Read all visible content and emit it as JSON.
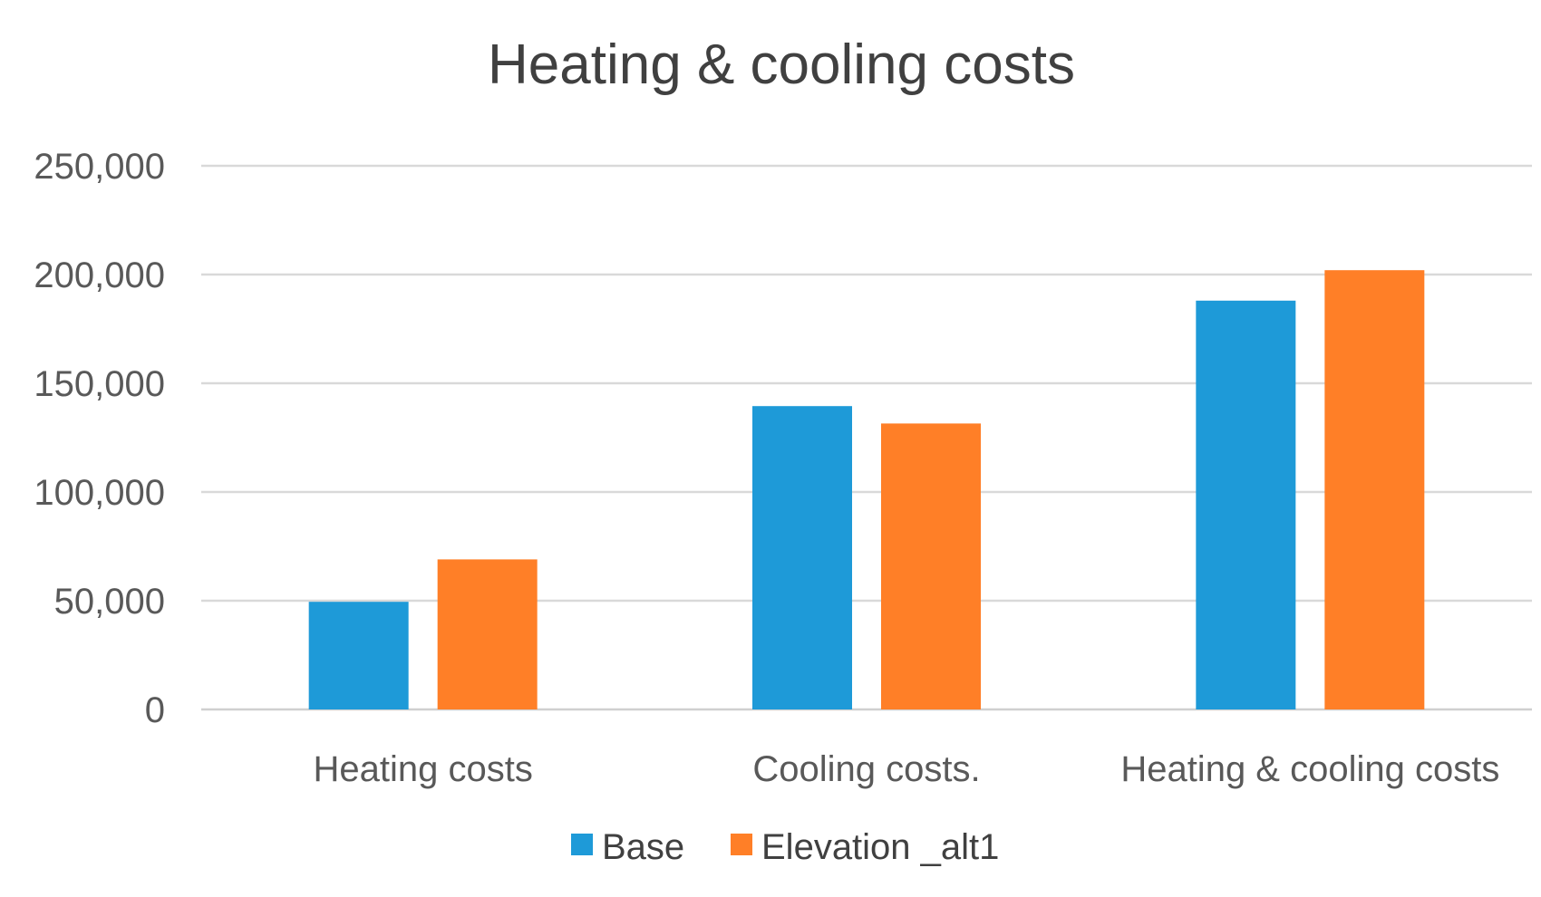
{
  "chart_data": {
    "type": "bar",
    "title": "Heating & cooling costs",
    "xlabel": "",
    "ylabel": "",
    "categories": [
      "Heating costs",
      "Cooling costs.",
      "Heating & cooling costs"
    ],
    "series": [
      {
        "name": "Base",
        "values": [
          49500,
          139500,
          188000
        ],
        "color": "#1e9ad8"
      },
      {
        "name": "Elevation _alt1",
        "values": [
          69000,
          131500,
          202000
        ],
        "color": "#ff7f27"
      }
    ],
    "ylim": [
      0,
      250000
    ],
    "yticks": [
      0,
      50000,
      100000,
      150000,
      200000,
      250000
    ],
    "ytick_labels": [
      "0",
      "50,000",
      "100,000",
      "150,000",
      "200,000",
      "250,000"
    ],
    "grid": true,
    "legend": "bottom"
  }
}
